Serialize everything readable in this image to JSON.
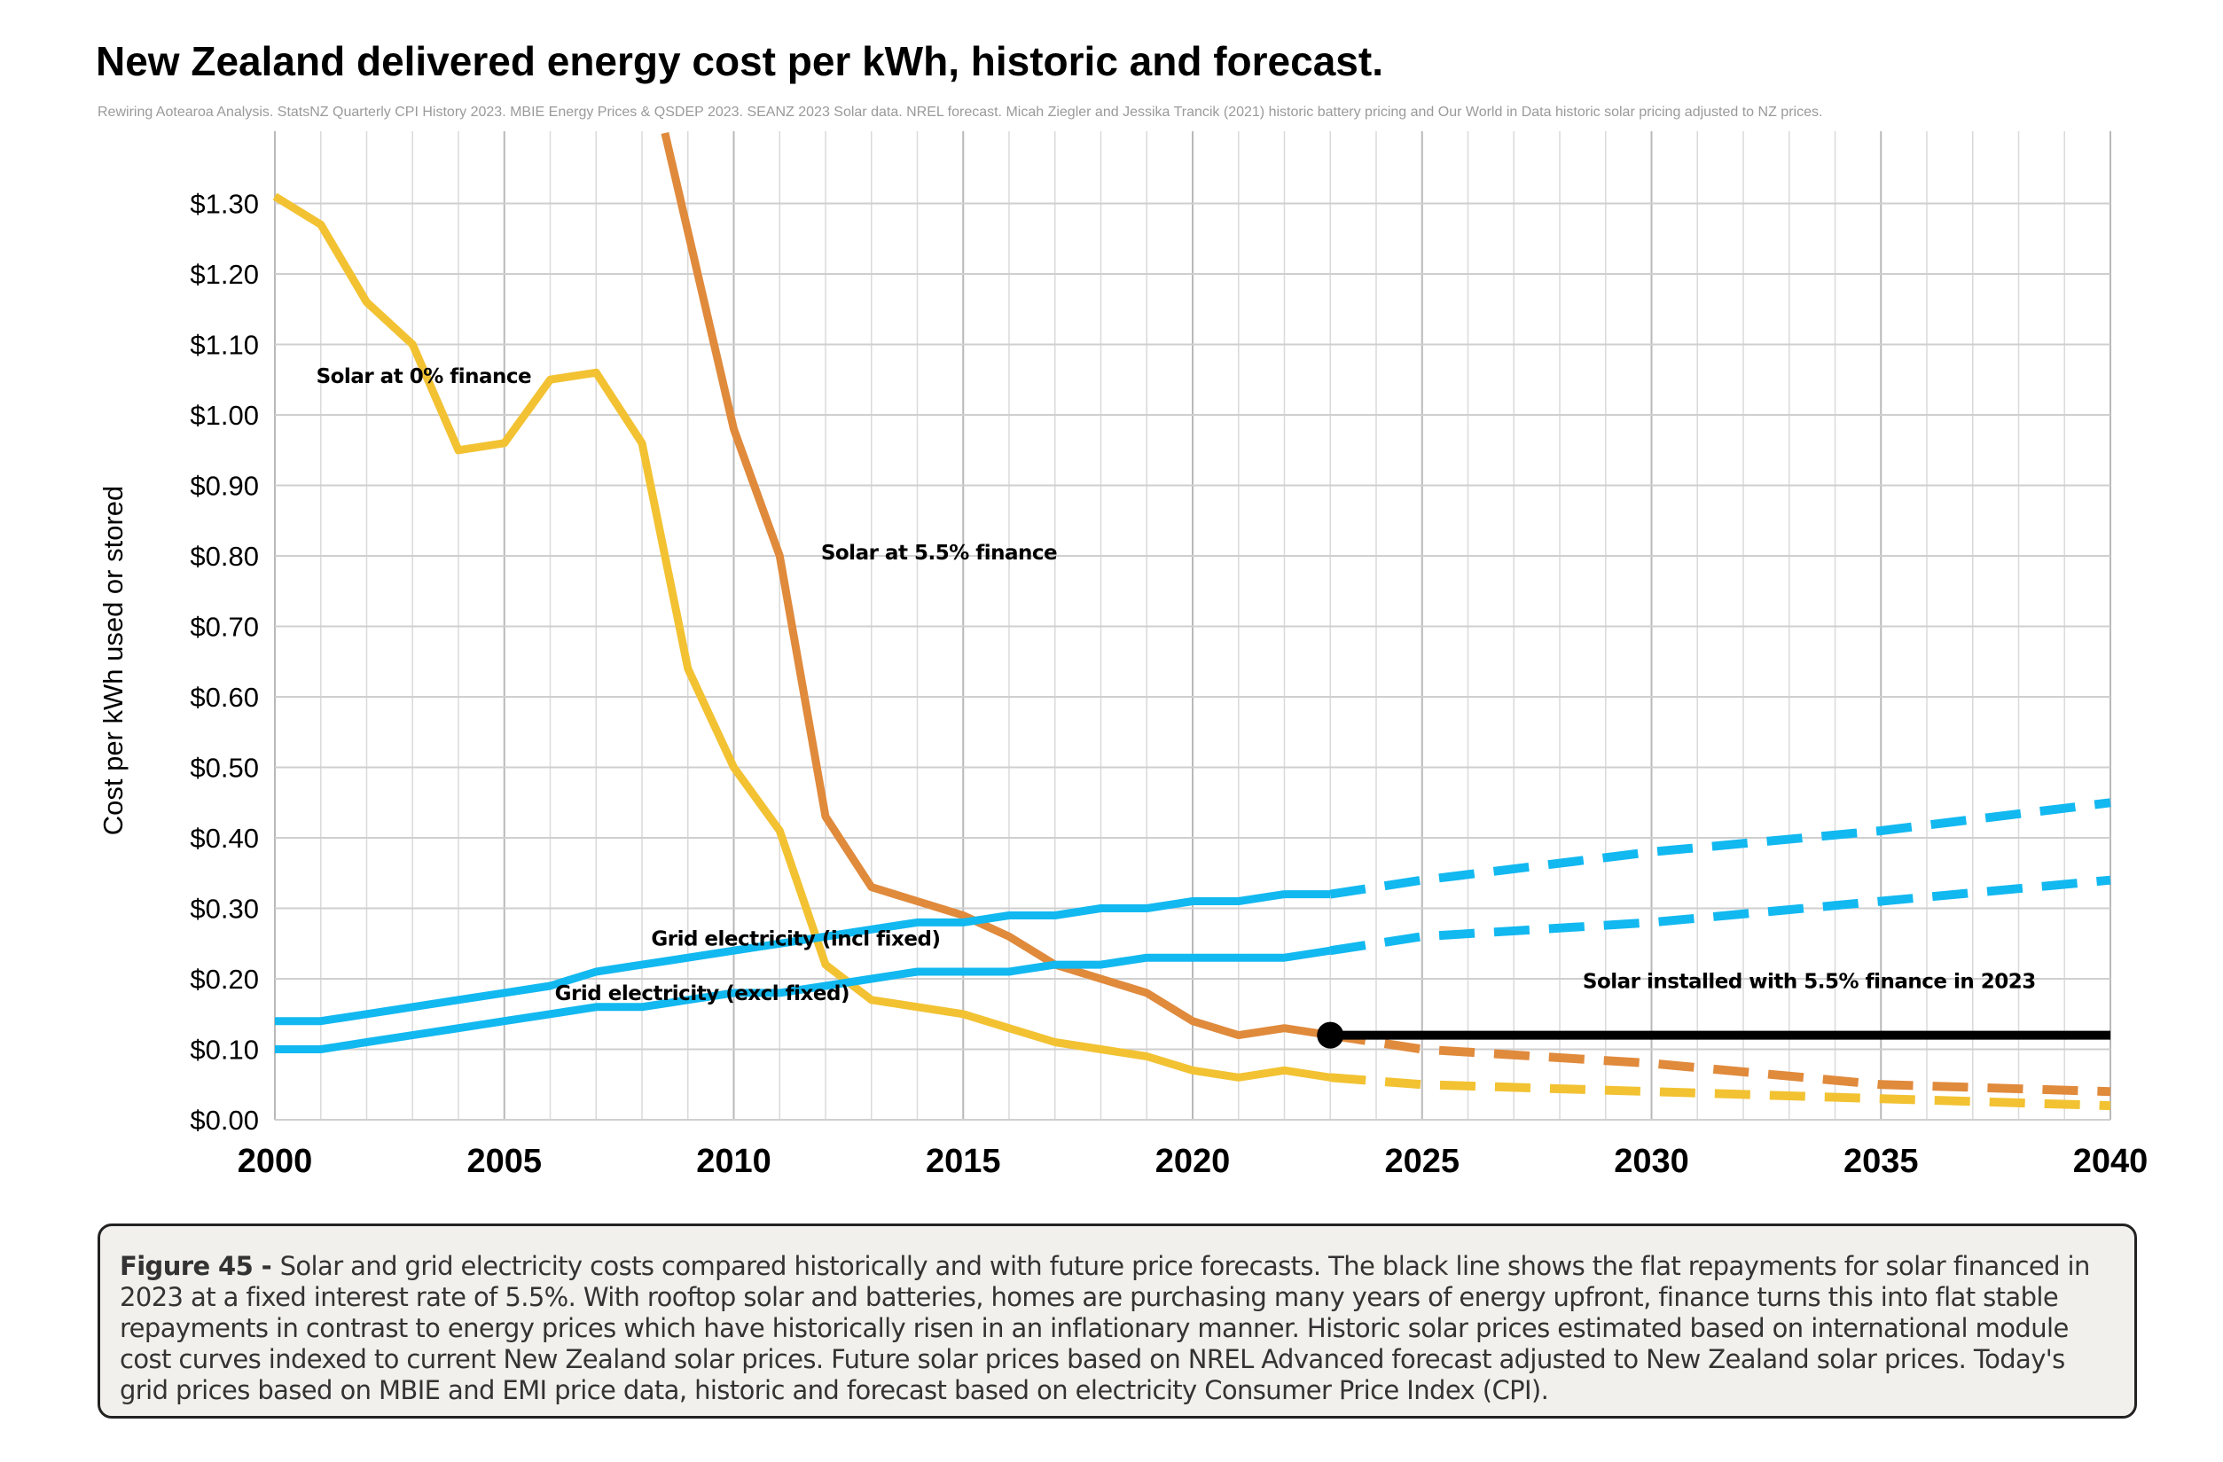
{
  "figure": {
    "title": "New Zealand delivered energy cost per kWh, historic and forecast.",
    "source": "Rewiring Aotearoa Analysis. StatsNZ Quarterly CPI History 2023. MBIE Energy Prices & QSDEP 2023. SEANZ 2023 Solar data. NREL forecast. Micah Ziegler and Jessika Trancik (2021) historic battery pricing and Our World in Data historic solar pricing adjusted to NZ prices.",
    "caption_label": "Figure 45 - ",
    "caption_text": "Solar and grid electricity costs compared historically and with future price forecasts. The black line shows the flat repayments for solar financed in 2023 at a fixed interest rate of 5.5%. With rooftop solar and batteries, homes are purchasing many years of energy upfront, finance turns this into flat stable repayments in contrast to energy prices which have historically risen in an inflationary manner. Historic solar prices estimated based on international module cost curves indexed to current New Zealand solar prices. Future solar prices based on NREL Advanced forecast adjusted to New Zealand solar prices. Today's grid prices based on MBIE and EMI price data, historic and forecast based on electricity Consumer Price Index (CPI)."
  },
  "chart_data": {
    "type": "line",
    "title": "New Zealand delivered energy cost per kWh, historic and forecast.",
    "xlabel": "",
    "ylabel": "Cost per kWh used or stored",
    "xlim": [
      2000,
      2040
    ],
    "ylim": [
      0,
      1.4
    ],
    "x_ticks": [
      2000,
      2005,
      2010,
      2015,
      2020,
      2025,
      2030,
      2035,
      2040
    ],
    "x_tick_labels": [
      "2000",
      "2005",
      "2010",
      "2015",
      "2020",
      "2025",
      "2030",
      "2035",
      "2040"
    ],
    "y_ticks": [
      0,
      0.1,
      0.2,
      0.3,
      0.4,
      0.5,
      0.6,
      0.7,
      0.8,
      0.9,
      1.0,
      1.1,
      1.2,
      1.3
    ],
    "y_tick_labels": [
      "$0.00",
      "$0.10",
      "$0.20",
      "$0.30",
      "$0.40",
      "$0.50",
      "$0.60",
      "$0.70",
      "$0.80",
      "$0.90",
      "$1.00",
      "$1.10",
      "$1.20",
      "$1.30"
    ],
    "grid": true,
    "colors": {
      "solar_0": "#f2c232",
      "solar_55": "#e08a3c",
      "grid": "#12b8f0",
      "installed": "#000000",
      "gridlines": "#cfcfcf"
    },
    "series": [
      {
        "label": "Solar at 0% finance",
        "color_key": "solar_0",
        "historic": {
          "x": [
            2000,
            2001,
            2002,
            2003,
            2004,
            2005,
            2006,
            2007,
            2008,
            2009,
            2010,
            2011,
            2012,
            2013,
            2014,
            2015,
            2016,
            2017,
            2018,
            2019,
            2020,
            2021,
            2022,
            2023
          ],
          "y": [
            1.31,
            1.27,
            1.16,
            1.1,
            0.95,
            0.96,
            1.05,
            1.06,
            0.96,
            0.64,
            0.5,
            0.41,
            0.22,
            0.17,
            0.16,
            0.15,
            0.13,
            0.11,
            0.1,
            0.09,
            0.07,
            0.06,
            0.07,
            0.06
          ]
        },
        "forecast": {
          "x": [
            2023,
            2025,
            2030,
            2035,
            2040
          ],
          "y": [
            0.06,
            0.05,
            0.04,
            0.03,
            0.02
          ]
        }
      },
      {
        "label": "Solar at 5.5% finance",
        "color_key": "solar_55",
        "historic": {
          "x": [
            2008.5,
            2009,
            2010,
            2011,
            2012,
            2013,
            2014,
            2015,
            2016,
            2017,
            2018,
            2019,
            2020,
            2021,
            2022,
            2023
          ],
          "y": [
            1.4,
            1.26,
            0.98,
            0.8,
            0.43,
            0.33,
            0.31,
            0.29,
            0.26,
            0.22,
            0.2,
            0.18,
            0.14,
            0.12,
            0.13,
            0.12
          ]
        },
        "forecast": {
          "x": [
            2023,
            2025,
            2030,
            2035,
            2040
          ],
          "y": [
            0.12,
            0.1,
            0.08,
            0.05,
            0.04
          ]
        }
      },
      {
        "label": "Grid electricity (incl fixed)",
        "color_key": "grid",
        "historic": {
          "x": [
            2000,
            2001,
            2002,
            2003,
            2004,
            2005,
            2006,
            2007,
            2008,
            2009,
            2010,
            2011,
            2012,
            2013,
            2014,
            2015,
            2016,
            2017,
            2018,
            2019,
            2020,
            2021,
            2022,
            2023
          ],
          "y": [
            0.14,
            0.14,
            0.15,
            0.16,
            0.17,
            0.18,
            0.19,
            0.21,
            0.22,
            0.23,
            0.24,
            0.25,
            0.26,
            0.27,
            0.28,
            0.28,
            0.29,
            0.29,
            0.3,
            0.3,
            0.31,
            0.31,
            0.32,
            0.32
          ]
        },
        "forecast": {
          "x": [
            2023,
            2025,
            2030,
            2035,
            2040
          ],
          "y": [
            0.32,
            0.34,
            0.38,
            0.41,
            0.45
          ]
        }
      },
      {
        "label": "Grid electricity (excl fixed)",
        "color_key": "grid",
        "historic": {
          "x": [
            2000,
            2001,
            2002,
            2003,
            2004,
            2005,
            2006,
            2007,
            2008,
            2009,
            2010,
            2011,
            2012,
            2013,
            2014,
            2015,
            2016,
            2017,
            2018,
            2019,
            2020,
            2021,
            2022,
            2023
          ],
          "y": [
            0.1,
            0.1,
            0.11,
            0.12,
            0.13,
            0.14,
            0.15,
            0.16,
            0.16,
            0.17,
            0.18,
            0.18,
            0.19,
            0.2,
            0.21,
            0.21,
            0.21,
            0.22,
            0.22,
            0.23,
            0.23,
            0.23,
            0.23,
            0.24
          ]
        },
        "forecast": {
          "x": [
            2023,
            2025,
            2030,
            2035,
            2040
          ],
          "y": [
            0.24,
            0.26,
            0.28,
            0.31,
            0.34
          ]
        }
      },
      {
        "label": "Solar installed with 5.5% finance in 2023",
        "color_key": "installed",
        "historic": {
          "x": [],
          "y": []
        },
        "forecast": {
          "x": [
            2023,
            2040
          ],
          "y": [
            0.12,
            0.12
          ]
        },
        "start_marker": {
          "x": 2023,
          "y": 0.12
        }
      }
    ],
    "annotations": [
      {
        "text": "Solar at 0% finance",
        "x": 2000.9,
        "y": 1.045
      },
      {
        "text": "Solar at 5.5% finance",
        "x": 2011.9,
        "y": 0.795
      },
      {
        "text": "Grid electricity (incl fixed)",
        "x": 2008.2,
        "y": 0.247
      },
      {
        "text": "Grid electricity (excl fixed)",
        "x": 2006.1,
        "y": 0.17
      },
      {
        "text": "Solar installed with 5.5% finance in 2023",
        "x": 2028.5,
        "y": 0.187
      }
    ]
  }
}
